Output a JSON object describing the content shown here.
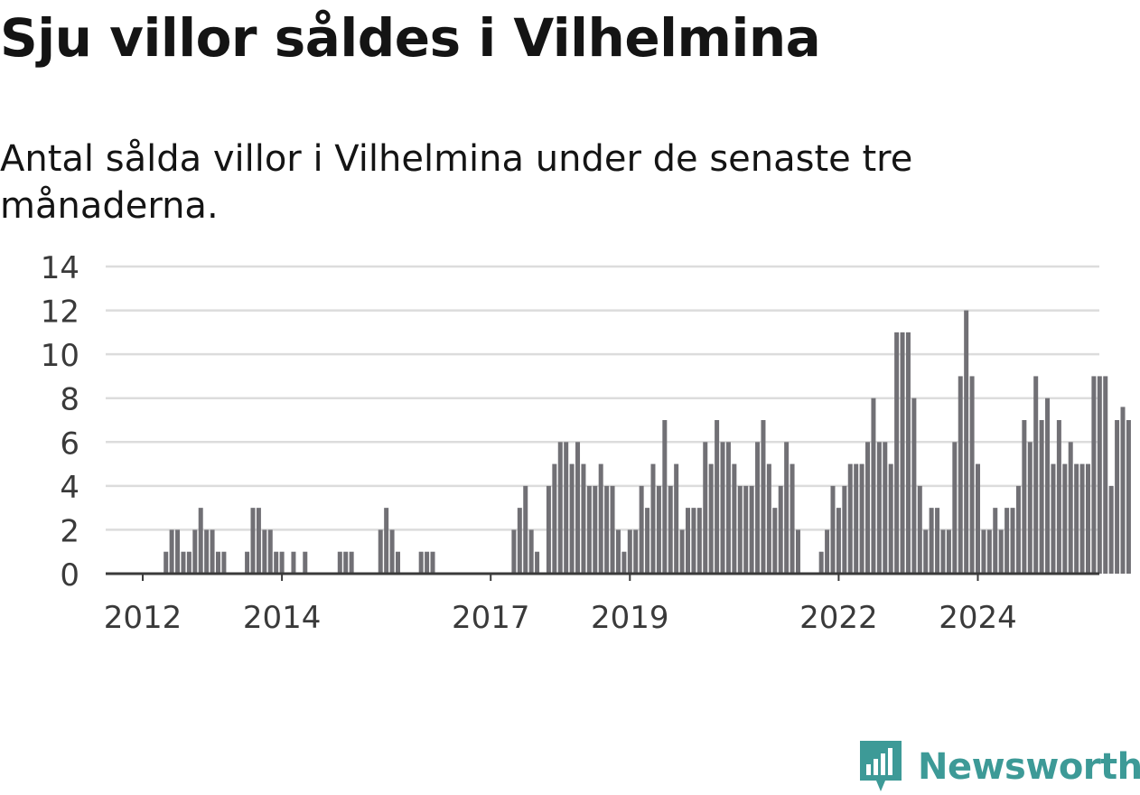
{
  "title": "Sju villor såldes i Vilhelmina",
  "subtitle": "Antal sålda villor i Vilhelmina under de senaste tre månaderna.",
  "brand": {
    "name": "Newsworthy",
    "color": "#3d9a97"
  },
  "chart_data": {
    "type": "bar",
    "title": "Sju villor såldes i Vilhelmina",
    "subtitle": "Antal sålda villor i Vilhelmina under de senaste tre månaderna.",
    "xlabel": "",
    "ylabel": "",
    "ylim": [
      0,
      14
    ],
    "yticks": [
      0,
      2,
      4,
      6,
      8,
      10,
      12,
      14
    ],
    "grid": true,
    "legend": "none",
    "bar_color": "#717075",
    "highlight_color": "#14a59f",
    "x_start": "2011-07",
    "x_step": "month",
    "xticks": [
      {
        "label": "2012",
        "at": "2012-01"
      },
      {
        "label": "2014",
        "at": "2014-01"
      },
      {
        "label": "2017",
        "at": "2017-01"
      },
      {
        "label": "2019",
        "at": "2019-01"
      },
      {
        "label": "2022",
        "at": "2022-01"
      },
      {
        "label": "2024",
        "at": "2024-01"
      }
    ],
    "series": [
      {
        "values": [
          null,
          null,
          null,
          null,
          null,
          null,
          null,
          null,
          null,
          null,
          1,
          2,
          2,
          1,
          1,
          2,
          3,
          2,
          2,
          1,
          1,
          null,
          null,
          null,
          1,
          3,
          3,
          2,
          2,
          1,
          1,
          null,
          1,
          null,
          1,
          null,
          null,
          null,
          null,
          null,
          1,
          1,
          1,
          null,
          null,
          null,
          null,
          2,
          3,
          2,
          1,
          null,
          null,
          null,
          1,
          1,
          1,
          null,
          null,
          null,
          null,
          null,
          null,
          null,
          null,
          null,
          null,
          null,
          null,
          null,
          2,
          3,
          4,
          2,
          1,
          null,
          4,
          5,
          6,
          6,
          5,
          6,
          5,
          4,
          4,
          5,
          4,
          4,
          2,
          1,
          2,
          2,
          4,
          3,
          5,
          4,
          7,
          4,
          5,
          2,
          3,
          3,
          3,
          6,
          5,
          7,
          6,
          6,
          5,
          4,
          4,
          4,
          6,
          7,
          5,
          3,
          4,
          6,
          5,
          2,
          null,
          null,
          null,
          1,
          2,
          4,
          3,
          4,
          5,
          5,
          5,
          6,
          8,
          6,
          6,
          5,
          11,
          11,
          11,
          8,
          4,
          2,
          3,
          3,
          2,
          2,
          6,
          9,
          12,
          9,
          5,
          2,
          2,
          3,
          2,
          3,
          3,
          4,
          7,
          6,
          9,
          7,
          8,
          5,
          7,
          5,
          6,
          5,
          5,
          5,
          9,
          9,
          9,
          4,
          7,
          7.6,
          7
        ]
      }
    ],
    "highlight": {
      "index": 182,
      "value": 7,
      "label": "7"
    }
  }
}
